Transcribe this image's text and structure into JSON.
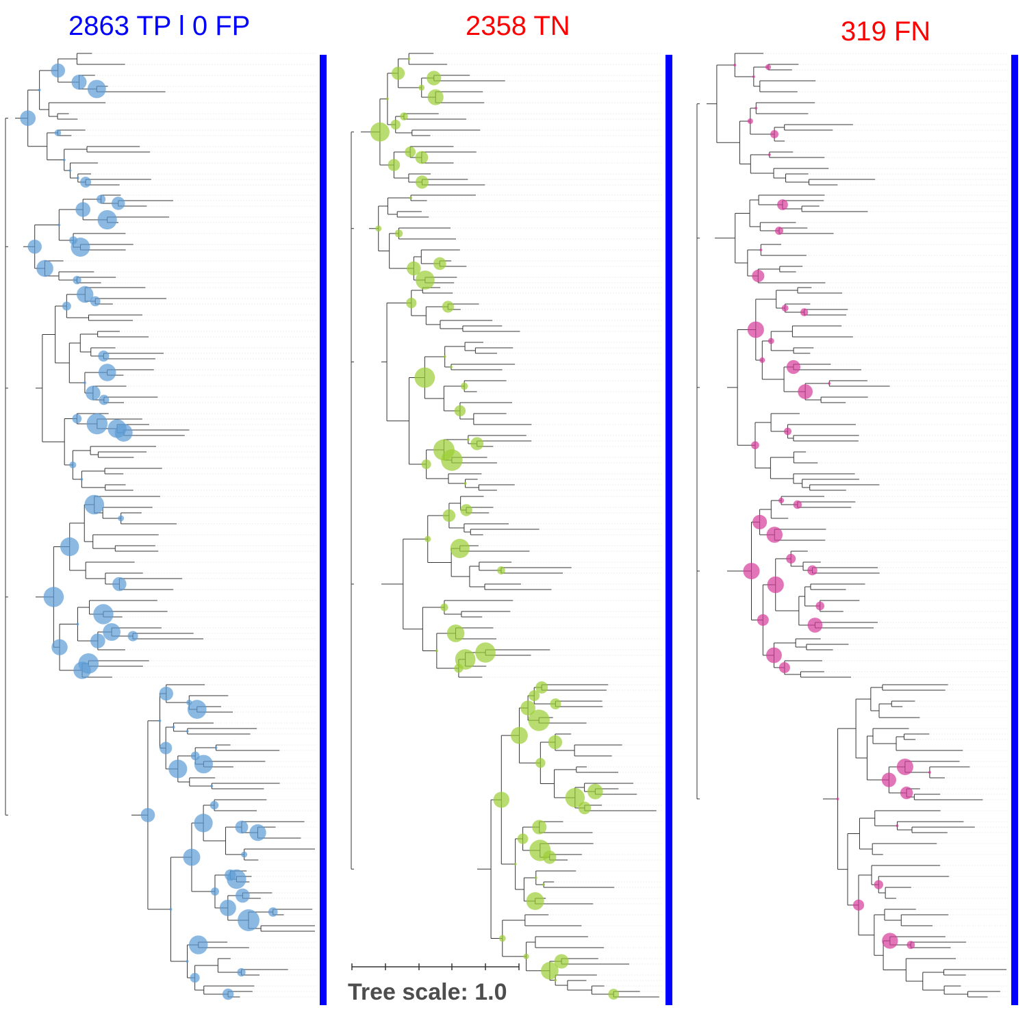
{
  "panels": [
    {
      "title": "2863 TP l 0 FP",
      "title_color": "#0000ff",
      "node_color": "#5b9bd5",
      "bar_color": "#0000ff"
    },
    {
      "title": "2358 TN",
      "title_color": "#ff0000",
      "node_color": "#9acd32",
      "bar_color": "#0000ff"
    },
    {
      "title": "319 FN",
      "title_color": "#ff0000",
      "node_color": "#d63a9a",
      "bar_color": "#0000ff"
    }
  ],
  "scale": {
    "label": "Tree scale: 1.0"
  },
  "colors": {
    "branch": "#333333",
    "guide": "#d9d9d9"
  }
}
